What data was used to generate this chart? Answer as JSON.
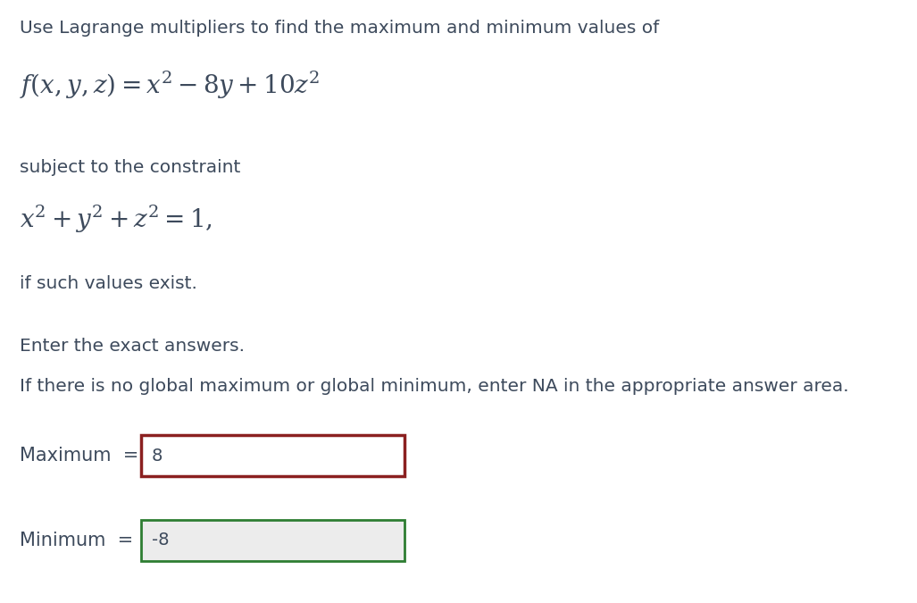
{
  "bg_color": "#ffffff",
  "text_color": "#3d4a5c",
  "math_color": "#3d4a5c",
  "line1": "Use Lagrange multipliers to find the maximum and minimum values of",
  "line2_math": "$f(x, y, z) = x^2 - 8y + 10z^2$",
  "line3": "subject to the constraint",
  "line4_math": "$x^2 + y^2 + z^2 = 1,$",
  "line5": "if such values exist.",
  "line6": "Enter the exact answers.",
  "line7": "If there is no global maximum or global minimum, enter NA in the appropriate answer area.",
  "max_label": "Maximum  =",
  "max_value": "8",
  "min_label": "Minimum  =",
  "min_value": "-8",
  "max_box_edge": "#8b2020",
  "min_box_edge": "#2e7d32",
  "max_box_fill": "#ffffff",
  "min_box_fill": "#ececec",
  "font_size_text": 14.5,
  "font_size_math": 20,
  "font_size_label": 15,
  "font_size_value": 14
}
